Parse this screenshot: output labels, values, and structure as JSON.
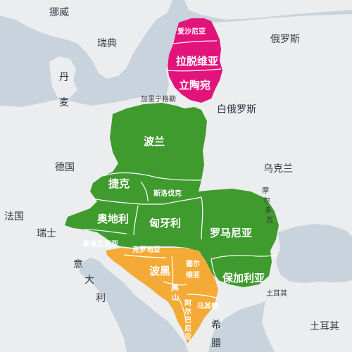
{
  "map": {
    "colors": {
      "sea": "#c9d3dd",
      "land": "#ecedef",
      "baltic": "#e2137a",
      "central_eastern": "#3f9b2e",
      "western_balkans": "#f4aa36",
      "outline": "#9aa3ad",
      "label_dark": "#2f3a44"
    },
    "regions": {
      "baltic": [
        "爱沙尼亚",
        "拉脱维亚",
        "立陶宛"
      ],
      "central_eastern": [
        "波兰",
        "捷克",
        "斯洛伐克",
        "奥地利",
        "匈牙利",
        "斯洛文尼亚",
        "罗马尼亚",
        "保加利亚"
      ],
      "western_balkans": [
        "克罗地亚",
        "波黑",
        "塞尔维亚",
        "黑山",
        "阿尔巴尼亚",
        "马其顿"
      ]
    },
    "labels": {
      "norway": "挪威",
      "sweden": "瑞典",
      "denmark_1": "丹",
      "denmark_2": "麦",
      "russia": "俄罗斯",
      "kaliningrad": "加里宁格勒",
      "belarus": "白俄罗斯",
      "germany": "德国",
      "ukraine": "乌克兰",
      "moldova_1": "摩",
      "moldova_2": "尔",
      "moldova_3": "多",
      "moldova_4": "瓦",
      "france": "法国",
      "switzerland": "瑞士",
      "italy_1": "意",
      "italy_2": "大",
      "italy_3": "利",
      "turkey_1": "土耳其",
      "turkey_2": "土耳其",
      "greece_1": "希",
      "greece_2": "腊",
      "estonia": "爱沙尼亚",
      "latvia": "拉脱维亚",
      "lithuania": "立陶宛",
      "poland": "波兰",
      "czech": "捷克",
      "slovakia": "斯洛伐克",
      "austria": "奥地利",
      "hungary": "匈牙利",
      "slovenia": "斯洛文尼亚",
      "romania": "罗马尼亚",
      "bulgaria": "保加利亚",
      "croatia": "克罗地亚",
      "bosnia": "波黑",
      "serbia_1": "塞尔",
      "serbia_2": "维亚",
      "montenegro_1": "黑",
      "montenegro_2": "山",
      "albania_1": "阿",
      "albania_2": "尔",
      "albania_3": "巴",
      "albania_4": "尼",
      "albania_5": "亚",
      "macedonia": "马其顿"
    }
  }
}
